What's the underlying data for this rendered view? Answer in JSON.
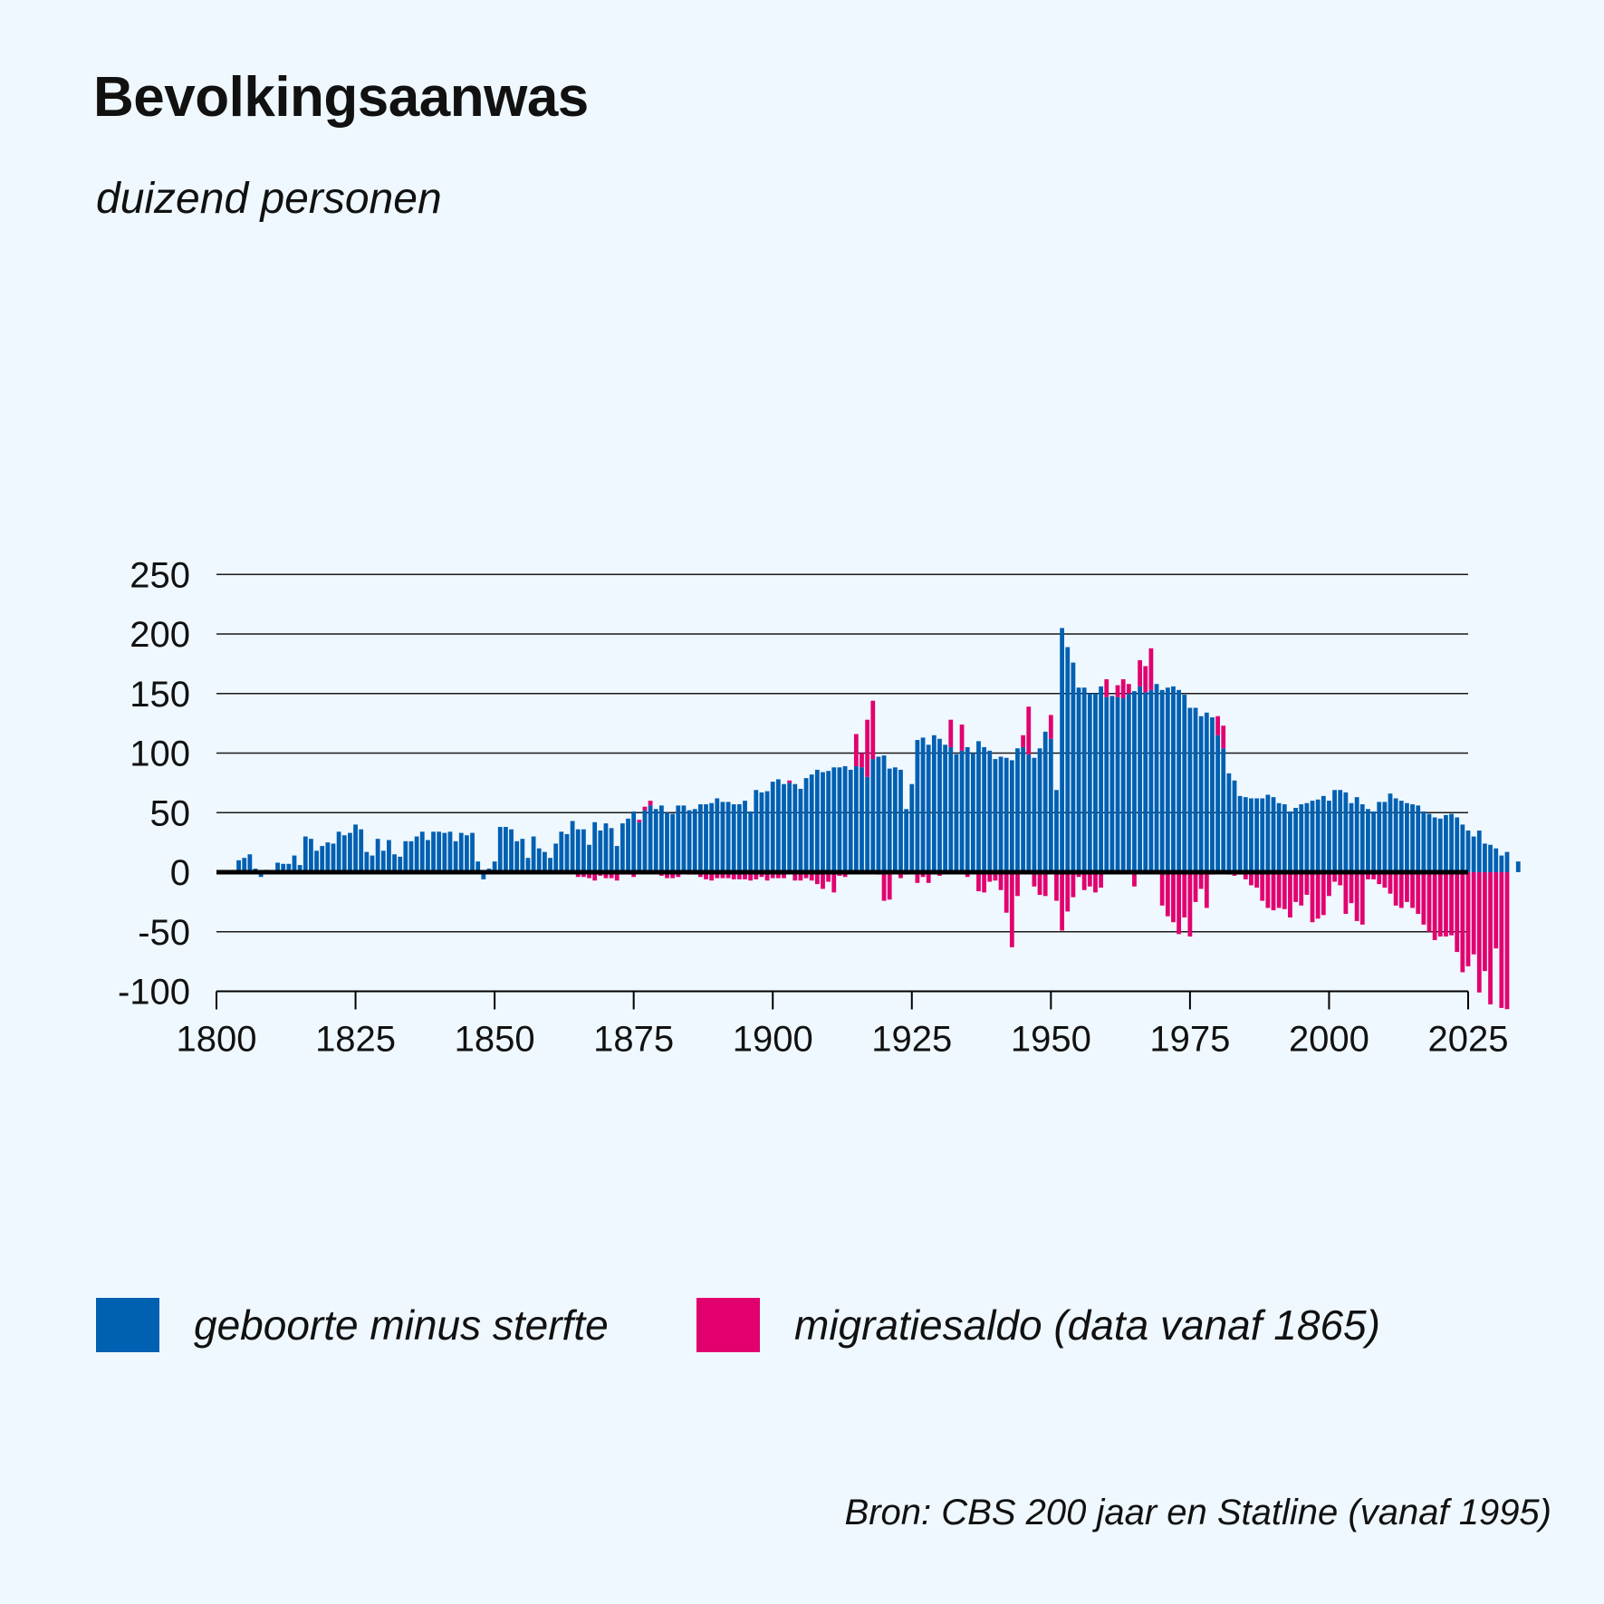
{
  "title": "Bevolkingsaanwas",
  "unit_label": "duizend personen",
  "legend": {
    "natural": "geboorte minus sterfte",
    "migration": "migratiesaldo (data vanaf 1865)"
  },
  "source": "Bron: CBS 200 jaar en Statline (vanaf 1995)",
  "colors": {
    "natural": "#0060b2",
    "migration": "#e2006f",
    "background": "#eff8fe",
    "axis": "#000000",
    "grid": "#1a1a1a"
  },
  "chart_data": {
    "type": "bar",
    "stacked": true,
    "title": "Bevolkingsaanwas",
    "ylabel": "duizend personen",
    "xlabel": "",
    "xlim": [
      1800,
      2025
    ],
    "ylim": [
      -100,
      250
    ],
    "x_ticks": [
      1800,
      1825,
      1850,
      1875,
      1900,
      1925,
      1950,
      1975,
      2000,
      2025
    ],
    "y_ticks": [
      -100,
      -50,
      0,
      50,
      100,
      150,
      200,
      250
    ],
    "grid": true,
    "legend_position": "bottom",
    "start_year": 1804,
    "series": [
      {
        "name": "geboorte minus sterfte",
        "values": [
          10,
          12,
          15,
          3,
          -4,
          2,
          0,
          8,
          7,
          7,
          14,
          6,
          30,
          28,
          18,
          22,
          25,
          24,
          34,
          31,
          33,
          40,
          36,
          17,
          14,
          28,
          18,
          27,
          15,
          13,
          26,
          26,
          30,
          34,
          27,
          34,
          34,
          33,
          34,
          26,
          33,
          31,
          33,
          9,
          -6,
          3,
          9,
          38,
          38,
          36,
          26,
          28,
          12,
          30,
          20,
          17,
          12,
          24,
          34,
          32,
          43,
          36,
          36,
          23,
          42,
          35,
          41,
          37,
          22,
          41,
          45,
          51,
          42,
          52,
          56,
          53,
          56,
          50,
          49,
          56,
          56,
          52,
          53,
          57,
          57,
          58,
          62,
          59,
          59,
          57,
          57,
          60,
          51,
          69,
          67,
          68,
          76,
          78,
          74,
          75,
          74,
          70,
          79,
          82,
          86,
          84,
          85,
          88,
          88,
          89,
          86,
          89,
          88,
          80,
          95,
          97,
          98,
          87,
          88,
          86,
          53,
          74,
          111,
          113,
          107,
          115,
          112,
          107,
          105,
          99,
          102,
          105,
          100,
          110,
          105,
          102,
          95,
          97,
          96,
          94,
          104,
          105,
          99,
          96,
          104,
          118,
          112,
          69,
          205,
          189,
          176,
          155,
          155,
          150,
          150,
          156,
          147,
          148,
          147,
          146,
          150,
          152,
          156,
          151,
          153,
          158,
          153,
          155,
          156,
          153,
          149,
          138,
          138,
          131,
          134,
          130,
          115,
          104,
          83,
          77,
          64,
          63,
          62,
          62,
          62,
          65,
          63,
          58,
          57,
          51,
          54,
          57,
          58,
          60,
          61,
          64,
          60,
          69,
          69,
          67,
          58,
          63,
          57,
          53,
          51,
          59,
          59,
          66,
          62,
          60,
          58,
          57,
          56,
          51,
          49,
          46,
          45,
          48,
          49,
          46,
          40,
          35,
          30,
          35,
          24,
          23,
          20,
          14,
          17,
          0,
          9
        ],
        "color": "#0060b2"
      },
      {
        "name": "migratiesaldo (data vanaf 1865)",
        "values": [
          null,
          null,
          null,
          null,
          null,
          null,
          null,
          null,
          null,
          null,
          null,
          null,
          null,
          null,
          null,
          null,
          null,
          null,
          null,
          null,
          null,
          null,
          null,
          null,
          null,
          null,
          null,
          null,
          null,
          null,
          null,
          null,
          null,
          null,
          null,
          null,
          null,
          null,
          null,
          null,
          null,
          null,
          null,
          null,
          null,
          null,
          null,
          null,
          null,
          null,
          null,
          null,
          null,
          null,
          null,
          null,
          null,
          null,
          null,
          null,
          null,
          -4,
          -4,
          -5,
          -7,
          -3,
          -5,
          -5,
          -7,
          -2,
          -2,
          -4,
          2,
          3,
          4,
          -1,
          -3,
          -5,
          -5,
          -4,
          -1,
          -2,
          -2,
          -4,
          -6,
          -7,
          -5,
          -5,
          -5,
          -6,
          -6,
          -6,
          -7,
          -6,
          -4,
          -7,
          -5,
          -5,
          -5,
          2,
          -7,
          -7,
          -5,
          -7,
          -10,
          -14,
          -8,
          -17,
          -3,
          -4,
          0,
          27,
          12,
          48,
          49,
          -2,
          -24,
          -23,
          0,
          -5,
          -2,
          0,
          -9,
          -4,
          -9,
          0,
          -3,
          0,
          23,
          0,
          22,
          -4,
          0,
          -16,
          -17,
          -8,
          -7,
          -15,
          -34,
          -63,
          -20,
          10,
          40,
          -12,
          -19,
          -20,
          20,
          -24,
          -49,
          -33,
          -21,
          -4,
          -15,
          -12,
          -17,
          -13,
          15,
          -1,
          10,
          16,
          8,
          -12,
          22,
          22,
          35,
          -1,
          -28,
          -37,
          -42,
          -52,
          -38,
          -54,
          -25,
          -14,
          -30,
          -2,
          16,
          19,
          -2,
          -3,
          -2,
          -6,
          -11,
          -13,
          -24,
          -30,
          -32,
          -30,
          -31,
          -38,
          -25,
          -28,
          -19,
          -42,
          -39,
          -36,
          -20,
          -8,
          -11,
          -35,
          -26,
          -41,
          -44,
          -6,
          -6,
          -10,
          -13,
          -18,
          -28,
          -30,
          -25,
          -30,
          -35,
          -44,
          -50,
          -57,
          -54,
          -54,
          -53,
          -67,
          -84,
          -79,
          -69,
          -101,
          -83,
          -111,
          -64,
          -114,
          -115
        ],
        "color": "#e2006f"
      }
    ]
  }
}
